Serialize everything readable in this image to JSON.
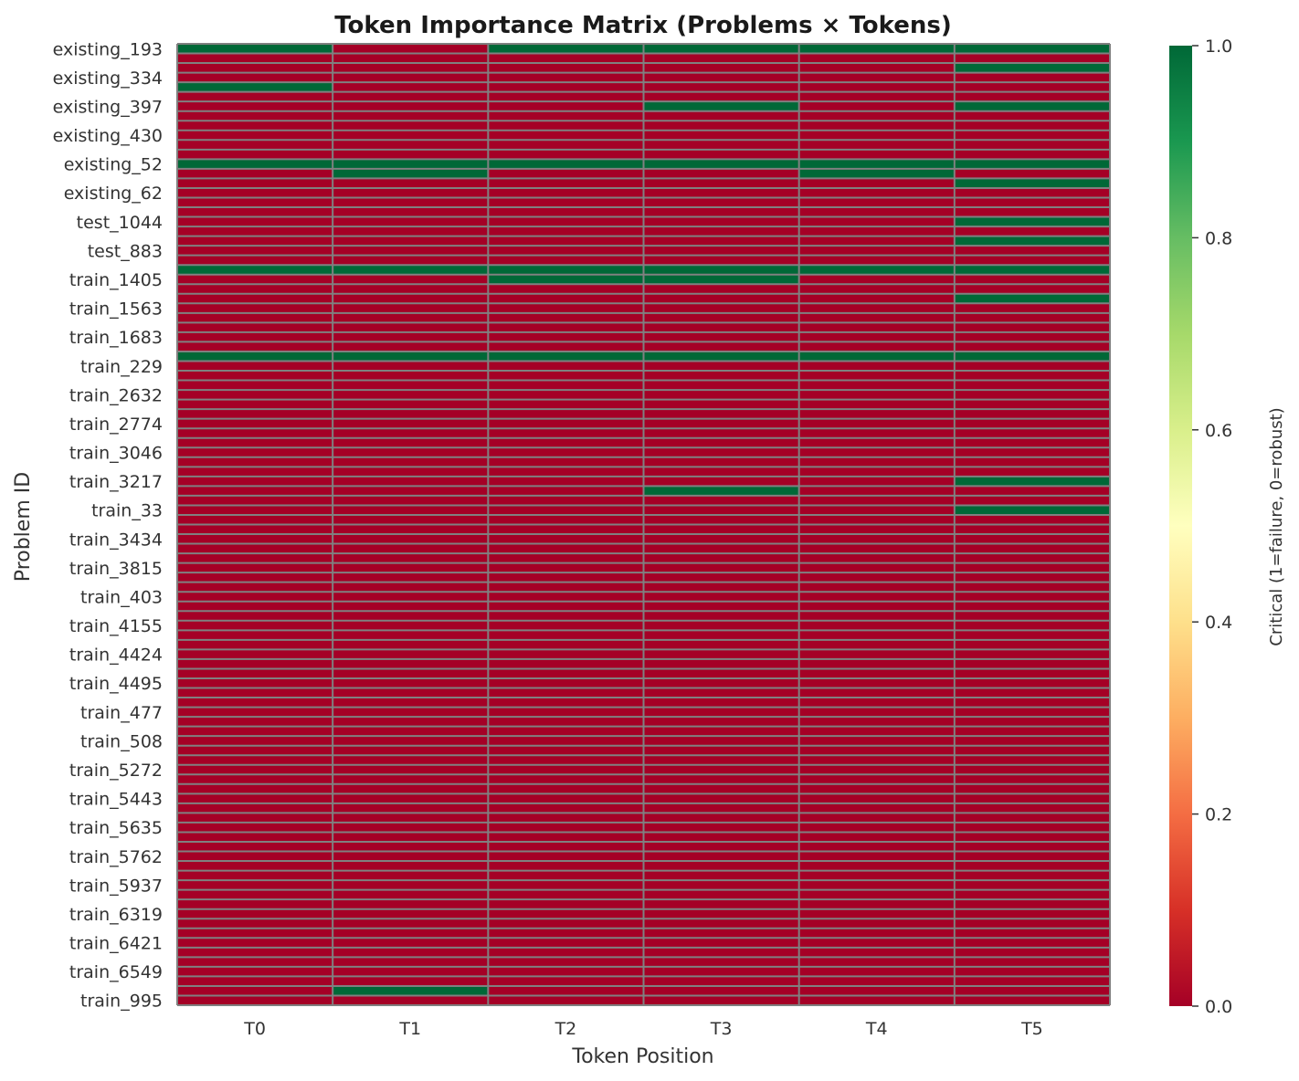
{
  "chart_data": {
    "type": "heatmap",
    "title": "Token Importance Matrix (Problems × Tokens)",
    "xlabel": "Token Position",
    "ylabel": "Problem ID",
    "columns": [
      "T0",
      "T1",
      "T2",
      "T3",
      "T4",
      "T5"
    ],
    "row_tick_labels": [
      "existing_193",
      "existing_334",
      "existing_397",
      "existing_430",
      "existing_52",
      "existing_62",
      "test_1044",
      "test_883",
      "train_1405",
      "train_1563",
      "train_1683",
      "train_229",
      "train_2632",
      "train_2774",
      "train_3046",
      "train_3217",
      "train_33",
      "train_3434",
      "train_3815",
      "train_403",
      "train_4155",
      "train_4424",
      "train_4495",
      "train_477",
      "train_508",
      "train_5272",
      "train_5443",
      "train_5635",
      "train_5762",
      "train_5937",
      "train_6319",
      "train_6421",
      "train_6549",
      "train_995"
    ],
    "row_count": 100,
    "values": [
      [
        1,
        0,
        1,
        1,
        1,
        1
      ],
      [
        0,
        0,
        0,
        0,
        0,
        0
      ],
      [
        0,
        0,
        0,
        0,
        0,
        1
      ],
      [
        0,
        0,
        0,
        0,
        0,
        0
      ],
      [
        1,
        0,
        0,
        0,
        0,
        0
      ],
      [
        0,
        0,
        0,
        0,
        0,
        0
      ],
      [
        0,
        0,
        0,
        1,
        0,
        1
      ],
      [
        0,
        0,
        0,
        0,
        0,
        0
      ],
      [
        0,
        0,
        0,
        0,
        0,
        0
      ],
      [
        0,
        0,
        0,
        0,
        0,
        0
      ],
      [
        0,
        0,
        0,
        0,
        0,
        0
      ],
      [
        0,
        0,
        0,
        0,
        0,
        0
      ],
      [
        1,
        1,
        1,
        1,
        1,
        1
      ],
      [
        0,
        1,
        0,
        0,
        1,
        0
      ],
      [
        0,
        0,
        0,
        0,
        0,
        1
      ],
      [
        0,
        0,
        0,
        0,
        0,
        0
      ],
      [
        0,
        0,
        0,
        0,
        0,
        0
      ],
      [
        0,
        0,
        0,
        0,
        0,
        0
      ],
      [
        0,
        0,
        0,
        0,
        0,
        1
      ],
      [
        0,
        0,
        0,
        0,
        0,
        0
      ],
      [
        0,
        0,
        0,
        0,
        0,
        1
      ],
      [
        0,
        0,
        0,
        0,
        0,
        0
      ],
      [
        0,
        0,
        0,
        0,
        0,
        0
      ],
      [
        1,
        1,
        1,
        1,
        1,
        1
      ],
      [
        0,
        0,
        1,
        1,
        0,
        0
      ],
      [
        0,
        0,
        0,
        0,
        0,
        0
      ],
      [
        0,
        0,
        0,
        0,
        0,
        1
      ],
      [
        0,
        0,
        0,
        0,
        0,
        0
      ],
      [
        0,
        0,
        0,
        0,
        0,
        0
      ],
      [
        0,
        0,
        0,
        0,
        0,
        0
      ],
      [
        0,
        0,
        0,
        0,
        0,
        0
      ],
      [
        0,
        0,
        0,
        0,
        0,
        0
      ],
      [
        1,
        1,
        1,
        1,
        1,
        1
      ],
      [
        0,
        0,
        0,
        0,
        0,
        0
      ],
      [
        0,
        0,
        0,
        0,
        0,
        0
      ],
      [
        0,
        0,
        0,
        0,
        0,
        0
      ],
      [
        0,
        0,
        0,
        0,
        0,
        0
      ],
      [
        0,
        0,
        0,
        0,
        0,
        0
      ],
      [
        0,
        0,
        0,
        0,
        0,
        0
      ],
      [
        0,
        0,
        0,
        0,
        0,
        0
      ],
      [
        0,
        0,
        0,
        0,
        0,
        0
      ],
      [
        0,
        0,
        0,
        0,
        0,
        0
      ],
      [
        0,
        0,
        0,
        0,
        0,
        0
      ],
      [
        0,
        0,
        0,
        0,
        0,
        0
      ],
      [
        0,
        0,
        0,
        0,
        0,
        0
      ],
      [
        0,
        0,
        0,
        0,
        0,
        1
      ],
      [
        0,
        0,
        0,
        1,
        0,
        0
      ],
      [
        0,
        0,
        0,
        0,
        0,
        0
      ],
      [
        0,
        0,
        0,
        0,
        0,
        1
      ],
      [
        0,
        0,
        0,
        0,
        0,
        0
      ],
      [
        0,
        0,
        0,
        0,
        0,
        0
      ],
      [
        0,
        0,
        0,
        0,
        0,
        0
      ],
      [
        0,
        0,
        0,
        0,
        0,
        0
      ],
      [
        0,
        0,
        0,
        0,
        0,
        0
      ],
      [
        0,
        0,
        0,
        0,
        0,
        0
      ],
      [
        0,
        0,
        0,
        0,
        0,
        0
      ],
      [
        0,
        0,
        0,
        0,
        0,
        0
      ],
      [
        0,
        0,
        0,
        0,
        0,
        0
      ],
      [
        0,
        0,
        0,
        0,
        0,
        0
      ],
      [
        0,
        0,
        0,
        0,
        0,
        0
      ],
      [
        0,
        0,
        0,
        0,
        0,
        0
      ],
      [
        0,
        0,
        0,
        0,
        0,
        0
      ],
      [
        0,
        0,
        0,
        0,
        0,
        0
      ],
      [
        0,
        0,
        0,
        0,
        0,
        0
      ],
      [
        0,
        0,
        0,
        0,
        0,
        0
      ],
      [
        0,
        0,
        0,
        0,
        0,
        0
      ],
      [
        0,
        0,
        0,
        0,
        0,
        0
      ],
      [
        0,
        0,
        0,
        0,
        0,
        0
      ],
      [
        0,
        0,
        0,
        0,
        0,
        0
      ],
      [
        0,
        0,
        0,
        0,
        0,
        0
      ],
      [
        0,
        0,
        0,
        0,
        0,
        0
      ],
      [
        0,
        0,
        0,
        0,
        0,
        0
      ],
      [
        0,
        0,
        0,
        0,
        0,
        0
      ],
      [
        0,
        0,
        0,
        0,
        0,
        0
      ],
      [
        0,
        0,
        0,
        0,
        0,
        0
      ],
      [
        0,
        0,
        0,
        0,
        0,
        0
      ],
      [
        0,
        0,
        0,
        0,
        0,
        0
      ],
      [
        0,
        0,
        0,
        0,
        0,
        0
      ],
      [
        0,
        0,
        0,
        0,
        0,
        0
      ],
      [
        0,
        0,
        0,
        0,
        0,
        0
      ],
      [
        0,
        0,
        0,
        0,
        0,
        0
      ],
      [
        0,
        0,
        0,
        0,
        0,
        0
      ],
      [
        0,
        0,
        0,
        0,
        0,
        0
      ],
      [
        0,
        0,
        0,
        0,
        0,
        0
      ],
      [
        0,
        0,
        0,
        0,
        0,
        0
      ],
      [
        0,
        0,
        0,
        0,
        0,
        0
      ],
      [
        0,
        0,
        0,
        0,
        0,
        0
      ],
      [
        0,
        0,
        0,
        0,
        0,
        0
      ],
      [
        0,
        0,
        0,
        0,
        0,
        0
      ],
      [
        0,
        0,
        0,
        0,
        0,
        0
      ],
      [
        0,
        0,
        0,
        0,
        0,
        0
      ],
      [
        0,
        0,
        0,
        0,
        0,
        0
      ],
      [
        0,
        0,
        0,
        0,
        0,
        0
      ],
      [
        0,
        0,
        0,
        0,
        0,
        0
      ],
      [
        0,
        0,
        0,
        0,
        0,
        0
      ],
      [
        0,
        0,
        0,
        0,
        0,
        0
      ],
      [
        0,
        0,
        0,
        0,
        0,
        0
      ],
      [
        0,
        0,
        0,
        0,
        0,
        0
      ],
      [
        0,
        1,
        0,
        0,
        0,
        0
      ],
      [
        0,
        0,
        0,
        0,
        0,
        0
      ]
    ],
    "colorbar": {
      "label": "Critical (1=failure, 0=robust)",
      "range": [
        0,
        1
      ],
      "ticks": [
        "0.0",
        "0.2",
        "0.4",
        "0.6",
        "0.8",
        "1.0"
      ],
      "colormap": [
        "#a50026",
        "#d73027",
        "#f46d43",
        "#fdae61",
        "#fee08b",
        "#ffffbf",
        "#d9ef8b",
        "#a6d96a",
        "#66bd63",
        "#1a9850",
        "#006837"
      ]
    },
    "grid_line_color": "#808080"
  }
}
